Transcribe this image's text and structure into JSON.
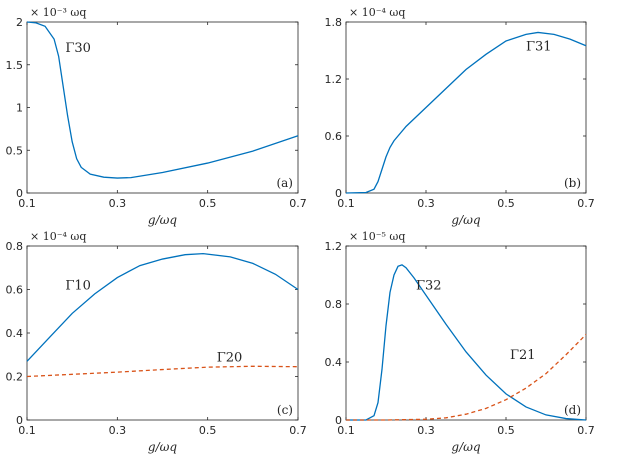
{
  "chart_data": [
    {
      "type": "line",
      "panel": "(a)",
      "multiplier_label": "× 10⁻³ ωq",
      "xlabel": "g/ωq",
      "xlim": [
        0.1,
        0.7
      ],
      "ylim": [
        0,
        2
      ],
      "xticks": [
        "0.1",
        "0.3",
        "0.5",
        "0.7"
      ],
      "yticks": [
        "0",
        "0.5",
        "1",
        "1.5",
        "2"
      ],
      "series": [
        {
          "name": "Γ30",
          "color": "#0072BD",
          "dash": "solid",
          "x": [
            0.1,
            0.12,
            0.14,
            0.16,
            0.17,
            0.18,
            0.19,
            0.2,
            0.21,
            0.22,
            0.24,
            0.27,
            0.3,
            0.33,
            0.4,
            0.5,
            0.6,
            0.7
          ],
          "y": [
            2.0,
            1.99,
            1.95,
            1.8,
            1.6,
            1.25,
            0.9,
            0.6,
            0.4,
            0.3,
            0.22,
            0.185,
            0.175,
            0.18,
            0.24,
            0.35,
            0.49,
            0.67
          ]
        }
      ]
    },
    {
      "type": "line",
      "panel": "(b)",
      "multiplier_label": "× 10⁻⁴ ωq",
      "xlabel": "g/ωq",
      "xlim": [
        0.1,
        0.7
      ],
      "ylim": [
        0,
        1.8
      ],
      "xticks": [
        "0.1",
        "0.3",
        "0.5",
        "0.7"
      ],
      "yticks": [
        "0",
        "0.6",
        "1.2",
        "1.8"
      ],
      "series": [
        {
          "name": "Γ31",
          "color": "#0072BD",
          "dash": "solid",
          "x": [
            0.1,
            0.15,
            0.17,
            0.18,
            0.19,
            0.2,
            0.21,
            0.22,
            0.25,
            0.3,
            0.35,
            0.4,
            0.45,
            0.5,
            0.55,
            0.58,
            0.62,
            0.66,
            0.7
          ],
          "y": [
            0,
            0.005,
            0.04,
            0.12,
            0.25,
            0.38,
            0.48,
            0.55,
            0.7,
            0.9,
            1.1,
            1.3,
            1.46,
            1.6,
            1.67,
            1.69,
            1.67,
            1.62,
            1.55
          ]
        }
      ]
    },
    {
      "type": "line",
      "panel": "(c)",
      "multiplier_label": "× 10⁻⁴ ωq",
      "xlabel": "g/ωq",
      "xlim": [
        0.1,
        0.7
      ],
      "ylim": [
        0,
        0.8
      ],
      "xticks": [
        "0.1",
        "0.3",
        "0.5",
        "0.7"
      ],
      "yticks": [
        "0",
        "0.2",
        "0.4",
        "0.6",
        "0.8"
      ],
      "series": [
        {
          "name": "Γ10",
          "color": "#0072BD",
          "dash": "solid",
          "x": [
            0.1,
            0.15,
            0.2,
            0.25,
            0.3,
            0.35,
            0.4,
            0.45,
            0.49,
            0.55,
            0.6,
            0.65,
            0.7
          ],
          "y": [
            0.27,
            0.38,
            0.49,
            0.58,
            0.655,
            0.71,
            0.74,
            0.76,
            0.765,
            0.75,
            0.72,
            0.67,
            0.6
          ]
        },
        {
          "name": "Γ20",
          "color": "#D95319",
          "dash": "dashed",
          "x": [
            0.1,
            0.2,
            0.3,
            0.4,
            0.5,
            0.6,
            0.7
          ],
          "y": [
            0.2,
            0.21,
            0.22,
            0.232,
            0.243,
            0.247,
            0.245
          ]
        }
      ]
    },
    {
      "type": "line",
      "panel": "(d)",
      "multiplier_label": "× 10⁻⁵ ωq",
      "xlabel": "g/ωq",
      "xlim": [
        0.1,
        0.7
      ],
      "ylim": [
        0,
        1.2
      ],
      "xticks": [
        "0.1",
        "0.3",
        "0.5",
        "0.7"
      ],
      "yticks": [
        "0",
        "0.4",
        "0.8",
        "1.2"
      ],
      "series": [
        {
          "name": "Γ32",
          "color": "#0072BD",
          "dash": "solid",
          "x": [
            0.1,
            0.15,
            0.17,
            0.18,
            0.19,
            0.2,
            0.21,
            0.22,
            0.23,
            0.24,
            0.25,
            0.27,
            0.3,
            0.35,
            0.4,
            0.45,
            0.5,
            0.55,
            0.6,
            0.65,
            0.7
          ],
          "y": [
            0,
            0.0,
            0.03,
            0.12,
            0.35,
            0.65,
            0.88,
            1.0,
            1.06,
            1.07,
            1.05,
            0.98,
            0.86,
            0.66,
            0.47,
            0.31,
            0.18,
            0.09,
            0.035,
            0.01,
            0.0
          ]
        },
        {
          "name": "Γ21",
          "color": "#D95319",
          "dash": "dashed",
          "x": [
            0.1,
            0.2,
            0.3,
            0.35,
            0.4,
            0.45,
            0.5,
            0.55,
            0.6,
            0.65,
            0.7
          ],
          "y": [
            0,
            0.0,
            0.005,
            0.015,
            0.04,
            0.08,
            0.14,
            0.22,
            0.32,
            0.45,
            0.59
          ]
        }
      ]
    }
  ]
}
